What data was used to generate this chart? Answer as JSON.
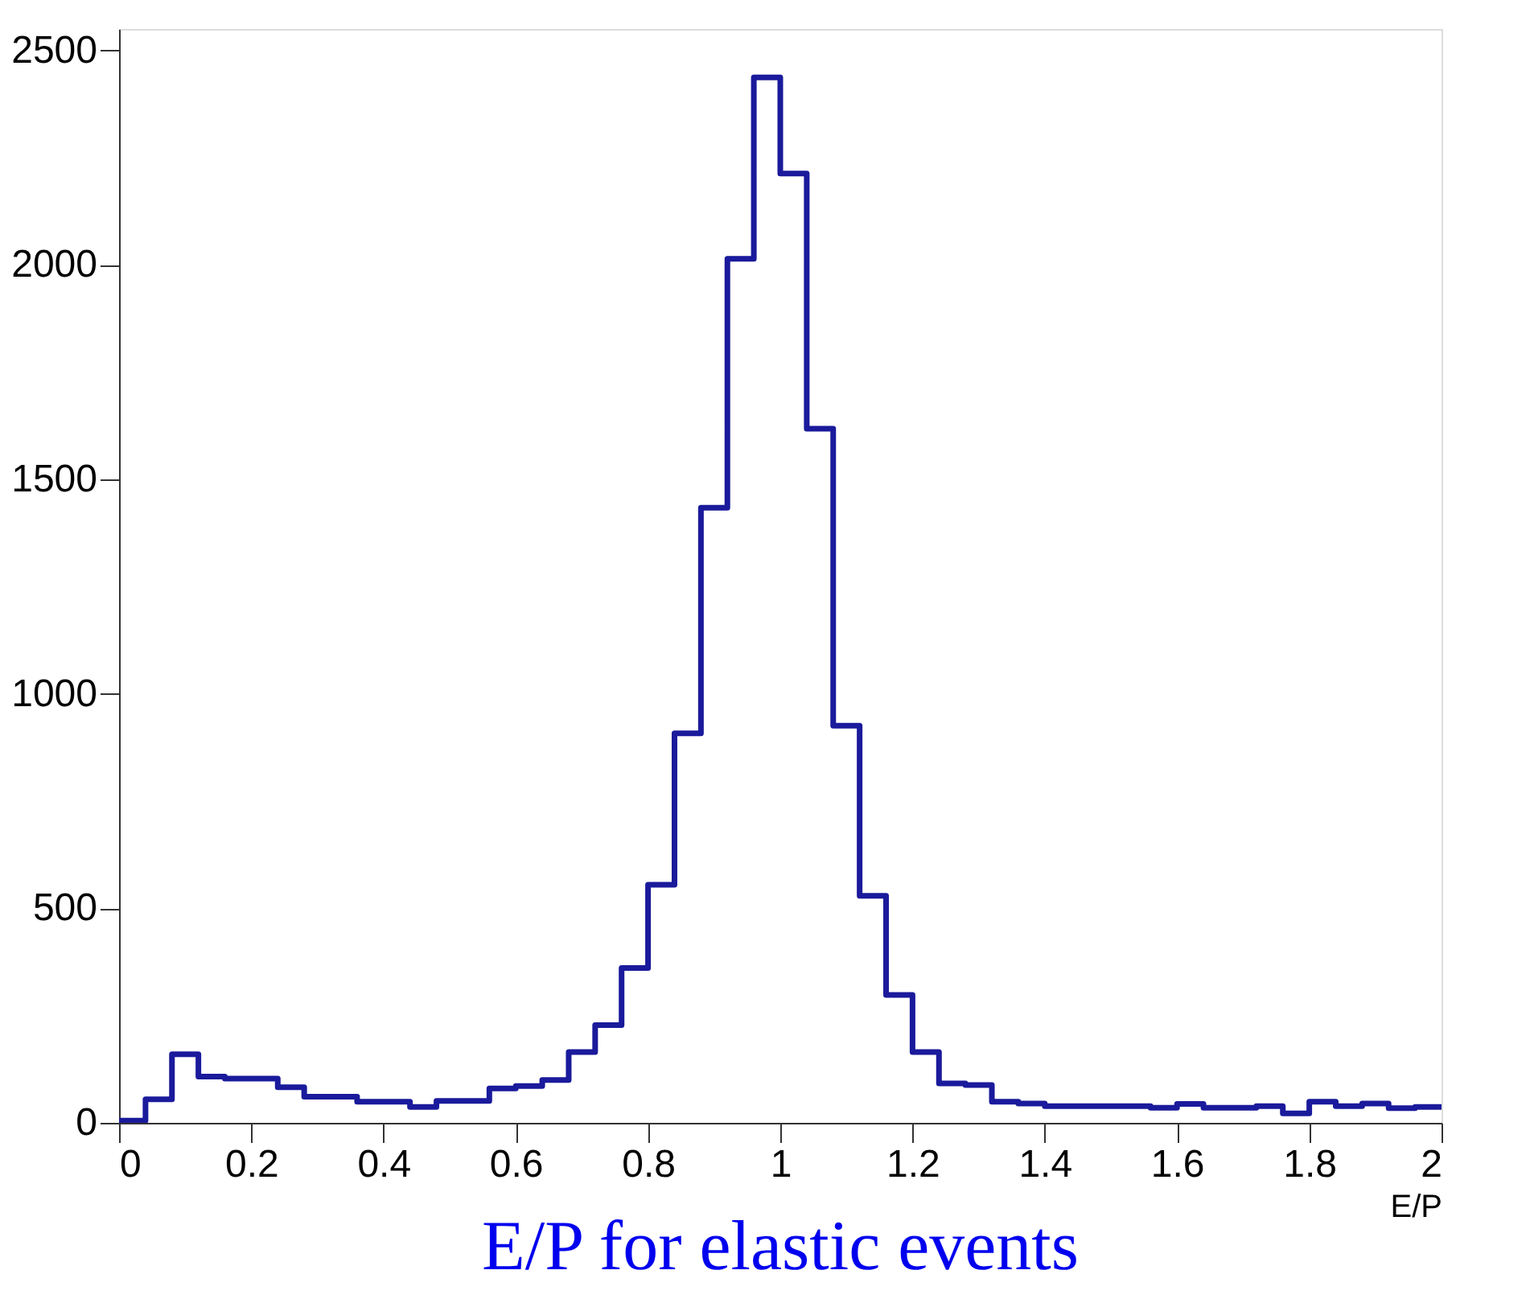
{
  "chart_data": {
    "type": "histogram",
    "title": "E/P for elastic events",
    "xlabel": "E/P",
    "bins": [
      0,
      0.04,
      0.08,
      0.12,
      0.16,
      0.2,
      0.24,
      0.28,
      0.32,
      0.36,
      0.4,
      0.44,
      0.48,
      0.52,
      0.56,
      0.6,
      0.64,
      0.68,
      0.72,
      0.76,
      0.8,
      0.84,
      0.88,
      0.92,
      0.96,
      1,
      1.04,
      1.08,
      1.12,
      1.16,
      1.2,
      1.24,
      1.28,
      1.32,
      1.36,
      1.4,
      1.44,
      1.48,
      1.52,
      1.56,
      1.6,
      1.64,
      1.68,
      1.72,
      1.76,
      1.8,
      1.84,
      1.88,
      1.92,
      1.96,
      2
    ],
    "values": [
      5,
      55,
      160,
      108,
      103,
      103,
      83,
      61,
      61,
      49,
      49,
      37,
      51,
      51,
      80,
      86,
      100,
      165,
      228,
      361,
      555,
      908,
      1434,
      2014,
      2437,
      2213,
      1618,
      926,
      529,
      298,
      165,
      92,
      88,
      49,
      45,
      39,
      39,
      39,
      39,
      35,
      44,
      35,
      35,
      39,
      22,
      49,
      39,
      45,
      34,
      37
    ],
    "color": "#1a1a9c",
    "xlim": [
      0,
      2
    ],
    "xticks": [
      0,
      0.2,
      0.4,
      0.6,
      0.8,
      1,
      1.2,
      1.4,
      1.6,
      1.8,
      2
    ],
    "ylim": [
      0,
      2550
    ],
    "yticks": [
      0,
      500,
      1000,
      1500,
      2000,
      2500
    ],
    "grid": false
  }
}
